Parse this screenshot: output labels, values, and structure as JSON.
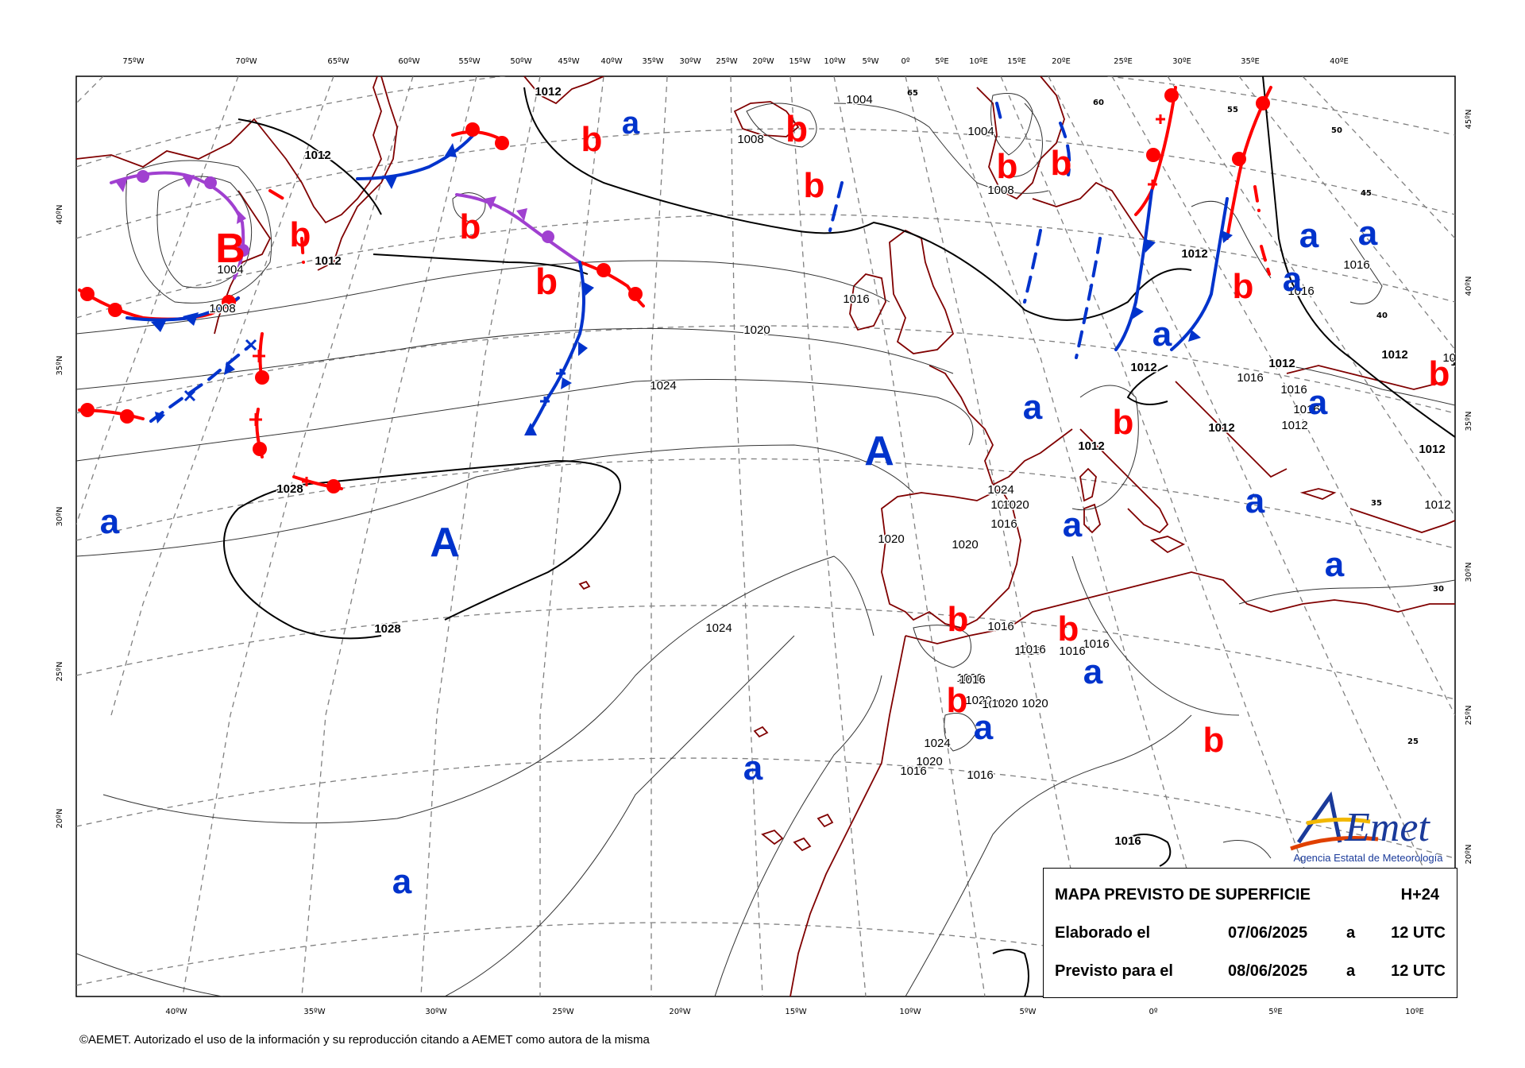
{
  "map": {
    "top_ticks": [
      "75ºW",
      "70ºW",
      "65ºW",
      "60ºW",
      "55ºW",
      "50ºW",
      "45ºW",
      "40ºW",
      "35ºW",
      "30ºW",
      "25ºW",
      "20ºW",
      "15ºW",
      "10ºW",
      "5ºW",
      "0º",
      "5ºE",
      "10ºE",
      "15ºE",
      "20ºE",
      "25ºE",
      "30ºE",
      "35ºE",
      "40ºE"
    ],
    "bottom_ticks": [
      "40ºW",
      "35ºW",
      "30ºW",
      "25ºW",
      "20ºW",
      "15ºW",
      "10ºW",
      "5ºW",
      "0º",
      "5ºE",
      "10ºE"
    ],
    "left_ticks": [
      "40ºN",
      "35ºN",
      "30ºN",
      "25ºN",
      "20ºN"
    ],
    "right_ticks": [
      "45ºN",
      "40ºN",
      "35ºN",
      "30ºN",
      "25ºN",
      "20ºN"
    ],
    "inner_lat_labels": [
      "65",
      "60",
      "55",
      "50",
      "45",
      "40",
      "35",
      "30",
      "25"
    ],
    "isobar_labels": [
      "1012",
      "1004",
      "1008",
      "1012",
      "1004",
      "1008",
      "1004",
      "1008",
      "1012",
      "1016",
      "1020",
      "1024",
      "1028",
      "1028",
      "1024",
      "1020",
      "1020",
      "1016",
      "1016",
      "1024",
      "1020",
      "1020",
      "1020",
      "1020",
      "1016",
      "1020",
      "1020",
      "1020",
      "1016",
      "1020",
      "1024",
      "1016",
      "1012",
      "1016",
      "1016",
      "1016",
      "1016",
      "1016",
      "1012",
      "1012",
      "1016",
      "1016",
      "1012",
      "1012",
      "1008",
      "1012",
      "1012",
      "1012",
      "1016",
      "1016",
      "1016",
      "1012",
      "1012"
    ],
    "system_labels": [
      {
        "text": "B",
        "color": "#ff0000"
      },
      {
        "text": "b",
        "color": "#ff0000"
      },
      {
        "text": "b",
        "color": "#ff0000"
      },
      {
        "text": "b",
        "color": "#ff0000"
      },
      {
        "text": "b",
        "color": "#ff0000"
      },
      {
        "text": "b",
        "color": "#ff0000"
      },
      {
        "text": "b",
        "color": "#ff0000"
      },
      {
        "text": "b",
        "color": "#ff0000"
      },
      {
        "text": "b",
        "color": "#ff0000"
      },
      {
        "text": "b",
        "color": "#ff0000"
      },
      {
        "text": "b",
        "color": "#ff0000"
      },
      {
        "text": "b",
        "color": "#ff0000"
      },
      {
        "text": "b",
        "color": "#ff0000"
      },
      {
        "text": "b",
        "color": "#ff0000"
      },
      {
        "text": "b",
        "color": "#ff0000"
      },
      {
        "text": "b",
        "color": "#ff0000"
      },
      {
        "text": "b",
        "color": "#ff0000"
      },
      {
        "text": "A",
        "color": "#0033cc"
      },
      {
        "text": "A",
        "color": "#0033cc"
      },
      {
        "text": "a",
        "color": "#0033cc"
      },
      {
        "text": "a",
        "color": "#0033cc"
      },
      {
        "text": "a",
        "color": "#0033cc"
      },
      {
        "text": "a",
        "color": "#0033cc"
      },
      {
        "text": "a",
        "color": "#0033cc"
      },
      {
        "text": "a",
        "color": "#0033cc"
      },
      {
        "text": "a",
        "color": "#0033cc"
      },
      {
        "text": "a",
        "color": "#0033cc"
      },
      {
        "text": "a",
        "color": "#0033cc"
      },
      {
        "text": "a",
        "color": "#0033cc"
      },
      {
        "text": "a",
        "color": "#0033cc"
      },
      {
        "text": "a",
        "color": "#0033cc"
      },
      {
        "text": "a",
        "color": "#0033cc"
      },
      {
        "text": "a",
        "color": "#0033cc"
      },
      {
        "text": "a",
        "color": "#0033cc"
      }
    ],
    "colors": {
      "high": "#0033cc",
      "low": "#ff0000",
      "occluded": "#a040d0",
      "coast": "#800000",
      "graticule": "#808080"
    }
  },
  "info": {
    "title": "MAPA PREVISTO DE SUPERFICIE",
    "step": "H+24",
    "made_label": "Elaborado el",
    "made_date": "07/06/2025",
    "made_at": "a",
    "made_time": "12 UTC",
    "valid_label": "Previsto para el",
    "valid_date": "08/06/2025",
    "valid_at": "a",
    "valid_time": "12 UTC"
  },
  "logo": {
    "name": "AEmet",
    "subtitle": "Agencia Estatal de Meteorología"
  },
  "copyright": "©AEMET. Autorizado el uso de la información y su reproducción citando a AEMET como autora de la misma"
}
